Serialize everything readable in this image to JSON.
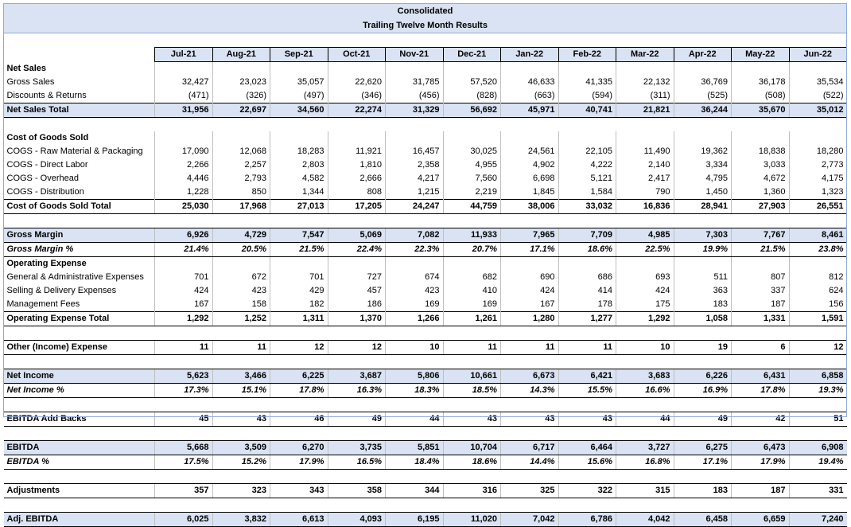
{
  "title_line1": "Consolidated",
  "title_line2": "Trailing Twelve Month Results",
  "months": [
    "Jul-21",
    "Aug-21",
    "Sep-21",
    "Oct-21",
    "Nov-21",
    "Dec-21",
    "Jan-22",
    "Feb-22",
    "Mar-22",
    "Apr-22",
    "May-22",
    "Jun-22"
  ],
  "rows": [
    {
      "type": "header",
      "label": "Net Sales",
      "values": []
    },
    {
      "type": "item",
      "label": "Gross Sales",
      "values": [
        "32,427",
        "23,023",
        "35,057",
        "22,620",
        "31,785",
        "57,520",
        "46,633",
        "41,335",
        "22,132",
        "36,769",
        "36,178",
        "35,534"
      ]
    },
    {
      "type": "item",
      "label": "Discounts & Returns",
      "values": [
        "(471)",
        "(326)",
        "(497)",
        "(346)",
        "(456)",
        "(828)",
        "(663)",
        "(594)",
        "(311)",
        "(525)",
        "(508)",
        "(522)"
      ]
    },
    {
      "type": "total",
      "label": "Net Sales Total",
      "values": [
        "31,956",
        "22,697",
        "34,560",
        "22,274",
        "31,329",
        "56,692",
        "45,971",
        "40,741",
        "21,821",
        "36,244",
        "35,670",
        "35,012"
      ]
    },
    {
      "type": "gap"
    },
    {
      "type": "header",
      "label": "Cost of Goods Sold",
      "values": []
    },
    {
      "type": "item",
      "label": "COGS - Raw Material & Packaging",
      "values": [
        "17,090",
        "12,068",
        "18,283",
        "11,921",
        "16,457",
        "30,025",
        "24,561",
        "22,105",
        "11,490",
        "19,362",
        "18,838",
        "18,280"
      ]
    },
    {
      "type": "item",
      "label": "COGS - Direct Labor",
      "values": [
        "2,266",
        "2,257",
        "2,803",
        "1,810",
        "2,358",
        "4,955",
        "4,902",
        "4,222",
        "2,140",
        "3,334",
        "3,033",
        "2,773"
      ]
    },
    {
      "type": "item",
      "label": "COGS - Overhead",
      "values": [
        "4,446",
        "2,793",
        "4,582",
        "2,666",
        "4,217",
        "7,560",
        "6,698",
        "5,121",
        "2,417",
        "4,795",
        "4,672",
        "4,175"
      ]
    },
    {
      "type": "item",
      "label": "COGS - Distribution",
      "values": [
        "1,228",
        "850",
        "1,344",
        "808",
        "1,215",
        "2,219",
        "1,845",
        "1,584",
        "790",
        "1,450",
        "1,360",
        "1,323"
      ]
    },
    {
      "type": "plain-bold",
      "label": "Cost of Goods Sold Total",
      "values": [
        "25,030",
        "17,968",
        "27,013",
        "17,205",
        "24,247",
        "44,759",
        "38,006",
        "33,032",
        "16,836",
        "28,941",
        "27,903",
        "26,551"
      ]
    },
    {
      "type": "gap"
    },
    {
      "type": "total",
      "label": "Gross Margin",
      "values": [
        "6,926",
        "4,729",
        "7,547",
        "5,069",
        "7,082",
        "11,933",
        "7,965",
        "7,709",
        "4,985",
        "7,303",
        "7,767",
        "8,461"
      ]
    },
    {
      "type": "pct",
      "label": "Gross Margin %",
      "values": [
        "21.4%",
        "20.5%",
        "21.5%",
        "22.4%",
        "22.3%",
        "20.7%",
        "17.1%",
        "18.6%",
        "22.5%",
        "19.9%",
        "21.5%",
        "23.8%"
      ]
    },
    {
      "type": "header",
      "label": "Operating Expense",
      "values": []
    },
    {
      "type": "item",
      "label": "General & Administrative Expenses",
      "values": [
        "701",
        "672",
        "701",
        "727",
        "674",
        "682",
        "690",
        "686",
        "693",
        "511",
        "807",
        "812"
      ]
    },
    {
      "type": "item",
      "label": "Selling & Delivery Expenses",
      "values": [
        "424",
        "423",
        "429",
        "457",
        "423",
        "410",
        "424",
        "414",
        "424",
        "363",
        "337",
        "624"
      ]
    },
    {
      "type": "item",
      "label": "Management Fees",
      "values": [
        "167",
        "158",
        "182",
        "186",
        "169",
        "169",
        "167",
        "178",
        "175",
        "183",
        "187",
        "156"
      ]
    },
    {
      "type": "plain-bold",
      "label": "Operating Expense Total",
      "values": [
        "1,292",
        "1,252",
        "1,311",
        "1,370",
        "1,266",
        "1,261",
        "1,280",
        "1,277",
        "1,292",
        "1,058",
        "1,331",
        "1,591"
      ]
    },
    {
      "type": "gap"
    },
    {
      "type": "plain-bold",
      "label": "Other (Income) Expense",
      "values": [
        "11",
        "11",
        "12",
        "12",
        "10",
        "11",
        "11",
        "11",
        "10",
        "19",
        "6",
        "12"
      ]
    },
    {
      "type": "gap"
    },
    {
      "type": "total",
      "label": "Net Income",
      "values": [
        "5,623",
        "3,466",
        "6,225",
        "3,687",
        "5,806",
        "10,661",
        "6,673",
        "6,421",
        "3,683",
        "6,226",
        "6,431",
        "6,858"
      ]
    },
    {
      "type": "pct",
      "label": "Net Income %",
      "values": [
        "17.3%",
        "15.1%",
        "17.8%",
        "16.3%",
        "18.3%",
        "18.5%",
        "14.3%",
        "15.5%",
        "16.6%",
        "16.9%",
        "17.8%",
        "19.3%"
      ]
    },
    {
      "type": "gap"
    },
    {
      "type": "plain-bold",
      "label": "EBITDA Add Backs",
      "values": [
        "45",
        "43",
        "46",
        "49",
        "44",
        "43",
        "43",
        "43",
        "44",
        "49",
        "42",
        "51"
      ]
    },
    {
      "type": "gap"
    },
    {
      "type": "total",
      "label": "EBITDA",
      "values": [
        "5,668",
        "3,509",
        "6,270",
        "3,735",
        "5,851",
        "10,704",
        "6,717",
        "6,464",
        "3,727",
        "6,275",
        "6,473",
        "6,908"
      ]
    },
    {
      "type": "pct",
      "label": "EBITDA %",
      "values": [
        "17.5%",
        "15.2%",
        "17.9%",
        "16.5%",
        "18.4%",
        "18.6%",
        "14.4%",
        "15.6%",
        "16.8%",
        "17.1%",
        "17.9%",
        "19.4%"
      ]
    },
    {
      "type": "gap"
    },
    {
      "type": "plain-bold",
      "label": "Adjustments",
      "values": [
        "357",
        "323",
        "343",
        "358",
        "344",
        "316",
        "325",
        "322",
        "315",
        "183",
        "187",
        "331"
      ]
    },
    {
      "type": "gap"
    },
    {
      "type": "total",
      "label": "Adj. EBITDA",
      "values": [
        "6,025",
        "3,832",
        "6,613",
        "4,093",
        "6,195",
        "11,020",
        "7,042",
        "6,786",
        "4,042",
        "6,458",
        "6,659",
        "7,240"
      ]
    }
  ]
}
